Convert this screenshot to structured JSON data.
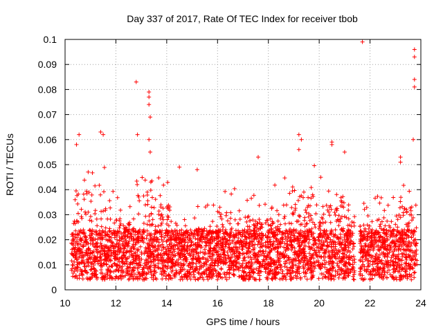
{
  "chart_data": {
    "type": "scatter",
    "title": "Day 337 of 2017, Rate Of TEC Index for receiver tbob",
    "xlabel": "GPS time / hours",
    "ylabel": "ROTI / TECUs",
    "xlim": [
      10,
      24
    ],
    "ylim": [
      0,
      0.1
    ],
    "xticks": [
      "10",
      "12",
      "14",
      "16",
      "18",
      "20",
      "22",
      "24"
    ],
    "yticks": [
      "0",
      "0.01",
      "0.02",
      "0.03",
      "0.04",
      "0.05",
      "0.06",
      "0.07",
      "0.08",
      "0.09",
      "0.1"
    ],
    "grid": true,
    "marker": "+",
    "color": "#ff0000",
    "data_x_range": [
      10.25,
      23.85
    ],
    "data_gap": [
      21.4,
      21.6
    ],
    "notable_points": [
      {
        "x": 12.8,
        "y": 0.083
      },
      {
        "x": 12.85,
        "y": 0.062
      },
      {
        "x": 13.3,
        "y": 0.079
      },
      {
        "x": 13.3,
        "y": 0.077
      },
      {
        "x": 13.3,
        "y": 0.074
      },
      {
        "x": 13.35,
        "y": 0.069
      },
      {
        "x": 13.3,
        "y": 0.06
      },
      {
        "x": 13.35,
        "y": 0.055
      },
      {
        "x": 10.55,
        "y": 0.062
      },
      {
        "x": 10.45,
        "y": 0.058
      },
      {
        "x": 11.4,
        "y": 0.063
      },
      {
        "x": 11.5,
        "y": 0.062
      },
      {
        "x": 14.5,
        "y": 0.049
      },
      {
        "x": 15.2,
        "y": 0.048
      },
      {
        "x": 17.6,
        "y": 0.053
      },
      {
        "x": 19.2,
        "y": 0.062
      },
      {
        "x": 19.3,
        "y": 0.06
      },
      {
        "x": 19.2,
        "y": 0.056
      },
      {
        "x": 20.5,
        "y": 0.059
      },
      {
        "x": 20.5,
        "y": 0.058
      },
      {
        "x": 21.0,
        "y": 0.055
      },
      {
        "x": 21.7,
        "y": 0.099
      },
      {
        "x": 23.75,
        "y": 0.096
      },
      {
        "x": 23.75,
        "y": 0.093
      },
      {
        "x": 23.75,
        "y": 0.084
      },
      {
        "x": 23.75,
        "y": 0.081
      },
      {
        "x": 23.7,
        "y": 0.06
      },
      {
        "x": 23.2,
        "y": 0.053
      },
      {
        "x": 23.2,
        "y": 0.051
      }
    ],
    "density_profile": [
      {
        "x0": 10.25,
        "x1": 10.4,
        "hi": 0.037
      },
      {
        "x0": 10.4,
        "x1": 11.0,
        "hi": 0.052
      },
      {
        "x0": 11.0,
        "x1": 11.6,
        "hi": 0.05
      },
      {
        "x0": 11.6,
        "x1": 12.2,
        "hi": 0.04
      },
      {
        "x0": 12.2,
        "x1": 12.8,
        "hi": 0.038
      },
      {
        "x0": 12.8,
        "x1": 13.6,
        "hi": 0.05
      },
      {
        "x0": 13.6,
        "x1": 14.2,
        "hi": 0.045
      },
      {
        "x0": 14.2,
        "x1": 15.0,
        "hi": 0.03
      },
      {
        "x0": 15.0,
        "x1": 16.0,
        "hi": 0.035
      },
      {
        "x0": 16.0,
        "x1": 17.2,
        "hi": 0.042
      },
      {
        "x0": 17.2,
        "x1": 18.0,
        "hi": 0.038
      },
      {
        "x0": 18.0,
        "x1": 19.0,
        "hi": 0.045
      },
      {
        "x0": 19.0,
        "x1": 20.0,
        "hi": 0.05
      },
      {
        "x0": 20.0,
        "x1": 21.0,
        "hi": 0.045
      },
      {
        "x0": 21.0,
        "x1": 21.4,
        "hi": 0.04
      },
      {
        "x0": 21.6,
        "x1": 22.2,
        "hi": 0.035
      },
      {
        "x0": 22.2,
        "x1": 23.0,
        "hi": 0.04
      },
      {
        "x0": 23.0,
        "x1": 23.85,
        "hi": 0.045
      }
    ]
  }
}
